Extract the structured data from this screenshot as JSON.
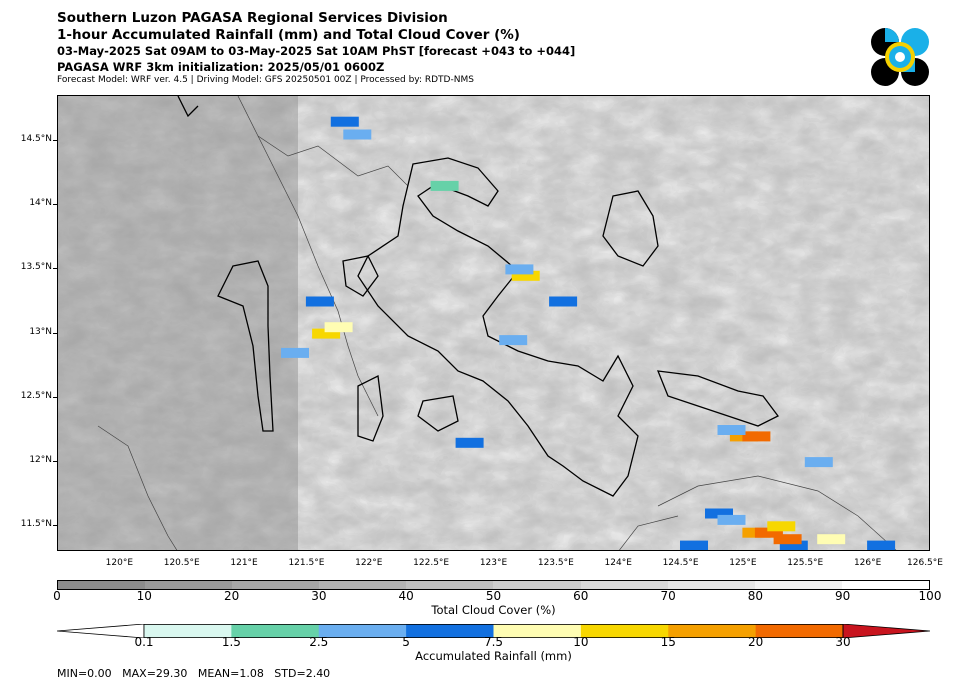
{
  "header": {
    "line1": "Southern Luzon PAGASA Regional Services Division",
    "line2": "1-hour Accumulated Rainfall (mm) and Total Cloud Cover (%)",
    "line3": "03-May-2025 Sat 09AM to 03-May-2025 Sat 10AM PhST [forecast +043 to +044]",
    "line4": "PAGASA WRF 3km initialization: 2025/05/01 0600Z",
    "line5": "Forecast Model: WRF ver. 4.5 | Driving Model: GFS 20250501 00Z | Processed by: RDTD-NMS"
  },
  "logo": {
    "icon": "pagasa-logo-icon",
    "colors": [
      "#000000",
      "#1ab0e8",
      "#f5d000"
    ]
  },
  "map": {
    "lon_range": [
      119.5,
      126.5
    ],
    "lat_range": [
      11.3,
      14.85
    ],
    "x_ticks": [
      {
        "value": 120.0,
        "label": "120°E"
      },
      {
        "value": 120.5,
        "label": "120.5°E"
      },
      {
        "value": 121.0,
        "label": "121°E"
      },
      {
        "value": 121.5,
        "label": "121.5°E"
      },
      {
        "value": 122.0,
        "label": "122°E"
      },
      {
        "value": 122.5,
        "label": "122.5°E"
      },
      {
        "value": 123.0,
        "label": "123°E"
      },
      {
        "value": 123.5,
        "label": "123.5°E"
      },
      {
        "value": 124.0,
        "label": "124°E"
      },
      {
        "value": 124.5,
        "label": "124.5°E"
      },
      {
        "value": 125.0,
        "label": "125°E"
      },
      {
        "value": 125.5,
        "label": "125.5°E"
      },
      {
        "value": 126.0,
        "label": "126°E"
      },
      {
        "value": 126.5,
        "label": "126.5°E"
      }
    ],
    "y_ticks": [
      {
        "value": 14.5,
        "label": "14.5°N"
      },
      {
        "value": 14.0,
        "label": "14°N"
      },
      {
        "value": 13.5,
        "label": "13.5°N"
      },
      {
        "value": 13.0,
        "label": "13°N"
      },
      {
        "value": 12.5,
        "label": "12.5°N"
      },
      {
        "value": 12.0,
        "label": "12°N"
      },
      {
        "value": 11.5,
        "label": "11.5°N"
      }
    ],
    "rain_cells": [
      {
        "lon": 121.8,
        "lat": 14.65,
        "mm": 6
      },
      {
        "lon": 121.9,
        "lat": 14.55,
        "mm": 3
      },
      {
        "lon": 121.6,
        "lat": 13.25,
        "mm": 6
      },
      {
        "lon": 121.65,
        "lat": 13.0,
        "mm": 12
      },
      {
        "lon": 121.75,
        "lat": 13.05,
        "mm": 8
      },
      {
        "lon": 121.4,
        "lat": 12.85,
        "mm": 4
      },
      {
        "lon": 122.6,
        "lat": 14.15,
        "mm": 2
      },
      {
        "lon": 123.25,
        "lat": 13.45,
        "mm": 12
      },
      {
        "lon": 123.2,
        "lat": 13.5,
        "mm": 3
      },
      {
        "lon": 123.55,
        "lat": 13.25,
        "mm": 6
      },
      {
        "lon": 123.15,
        "lat": 12.95,
        "mm": 4
      },
      {
        "lon": 122.8,
        "lat": 12.15,
        "mm": 6
      },
      {
        "lon": 125.0,
        "lat": 12.2,
        "mm": 18
      },
      {
        "lon": 125.1,
        "lat": 12.2,
        "mm": 20
      },
      {
        "lon": 124.9,
        "lat": 12.25,
        "mm": 3
      },
      {
        "lon": 124.8,
        "lat": 11.6,
        "mm": 7
      },
      {
        "lon": 124.9,
        "lat": 11.55,
        "mm": 4
      },
      {
        "lon": 125.1,
        "lat": 11.45,
        "mm": 16
      },
      {
        "lon": 125.2,
        "lat": 11.45,
        "mm": 20
      },
      {
        "lon": 125.3,
        "lat": 11.5,
        "mm": 12
      },
      {
        "lon": 125.4,
        "lat": 11.35,
        "mm": 6
      },
      {
        "lon": 125.7,
        "lat": 11.4,
        "mm": 8
      },
      {
        "lon": 126.1,
        "lat": 11.35,
        "mm": 5
      },
      {
        "lon": 125.6,
        "lat": 12.0,
        "mm": 3
      },
      {
        "lon": 124.6,
        "lat": 11.35,
        "mm": 5
      },
      {
        "lon": 125.35,
        "lat": 11.4,
        "mm": 24
      }
    ]
  },
  "cloud_colorbar": {
    "title": "Total Cloud Cover (%)",
    "ticks": [
      "0",
      "10",
      "20",
      "30",
      "40",
      "50",
      "60",
      "70",
      "80",
      "90",
      "100"
    ],
    "colors": [
      "#8c8c8c",
      "#999999",
      "#a6a6a6",
      "#b3b3b3",
      "#bfbfbf",
      "#cccccc",
      "#d9d9d9",
      "#e5e5e5",
      "#f2f2f2",
      "#ffffff"
    ]
  },
  "rain_colorbar": {
    "title": "Accumulated Rainfall (mm)",
    "ticks": [
      "0.1",
      "1.5",
      "2.5",
      "5",
      "7.5",
      "10",
      "15",
      "20",
      "30"
    ],
    "colors": [
      "#d9f7ef",
      "#66d1a8",
      "#6aaef0",
      "#1270e0",
      "#fffdb3",
      "#f7d700",
      "#f5a000",
      "#f26a00",
      "#c8141e"
    ]
  },
  "stats": "MIN=0.00   MAX=29.30   MEAN=1.08   STD=2.40"
}
